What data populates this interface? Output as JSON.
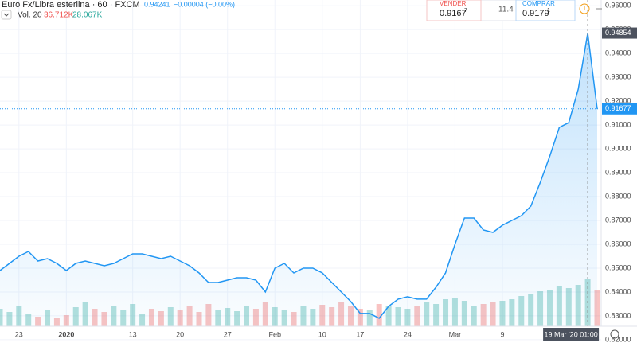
{
  "chart_data": {
    "type": "area",
    "symbol": "Euro Fx/Libra esterlina · 60 · FXCM",
    "last": "0.94241",
    "change": "−0.00004 (−0.00%)",
    "volume_label": "Vol. 20",
    "volume_readings": [
      "36.712K",
      "28.067K"
    ],
    "sell_label": "VENDER",
    "sell_price": "0.9167",
    "sell_sup": "7",
    "spread": "11.4",
    "buy_label": "COMPRAR",
    "buy_price": "0.9179",
    "buy_sup": "1",
    "categories": [
      null,
      null,
      "23",
      null,
      null,
      null,
      null,
      "2020",
      null,
      null,
      null,
      null,
      null,
      null,
      "13",
      null,
      null,
      null,
      null,
      "20",
      null,
      null,
      null,
      null,
      "27",
      null,
      null,
      null,
      null,
      "Feb",
      null,
      null,
      null,
      null,
      "10",
      null,
      null,
      null,
      "17",
      null,
      null,
      null,
      null,
      "24",
      null,
      null,
      null,
      null,
      "Mar",
      null,
      null,
      null,
      null,
      "9",
      null,
      null,
      null,
      null,
      null,
      null,
      null,
      null,
      "19 Mar '20   01:00",
      null
    ],
    "series": [
      {
        "name": "Euro Fx/Libra esterlina",
        "color": "#2196f3",
        "values": [
          0.849,
          0.852,
          0.855,
          0.857,
          0.853,
          0.854,
          0.852,
          0.849,
          0.852,
          0.853,
          0.852,
          0.851,
          0.852,
          0.854,
          0.856,
          0.856,
          0.855,
          0.854,
          0.855,
          0.853,
          0.851,
          0.848,
          0.844,
          0.844,
          0.845,
          0.846,
          0.846,
          0.845,
          0.84,
          0.85,
          0.852,
          0.848,
          0.85,
          0.85,
          0.848,
          0.844,
          0.84,
          0.836,
          0.831,
          0.831,
          0.829,
          0.834,
          0.837,
          0.838,
          0.837,
          0.837,
          0.842,
          0.848,
          0.86,
          0.871,
          0.871,
          0.866,
          0.865,
          0.868,
          0.87,
          0.872,
          0.876,
          0.886,
          0.897,
          0.909,
          0.911,
          0.925,
          0.94854,
          0.91677
        ]
      },
      {
        "name": "Vol. 20",
        "color": "#26a69a",
        "values": [
          22,
          18,
          25,
          15,
          12,
          20,
          10,
          14,
          24,
          30,
          22,
          18,
          26,
          20,
          28,
          16,
          22,
          19,
          24,
          21,
          25,
          18,
          28,
          20,
          23,
          19,
          26,
          22,
          30,
          24,
          20,
          18,
          25,
          22,
          27,
          24,
          30,
          26,
          22,
          20,
          28,
          25,
          24,
          22,
          26,
          30,
          28,
          34,
          36,
          32,
          26,
          28,
          30,
          32,
          34,
          38,
          40,
          44,
          46,
          50,
          48,
          52,
          60,
          45
        ]
      }
    ],
    "crosshair_index": 62,
    "high_line": 0.94854,
    "last_line": 0.91677,
    "ylim": [
      0.8193,
      0.9614
    ],
    "yticks": [
      {
        "value": 0.82,
        "label": "0.82000"
      },
      {
        "value": 0.83,
        "label": "0.83000"
      },
      {
        "value": 0.84,
        "label": "0.84000"
      },
      {
        "value": 0.85,
        "label": "0.85000"
      },
      {
        "value": 0.86,
        "label": "0.86000"
      },
      {
        "value": 0.87,
        "label": "0.87000"
      },
      {
        "value": 0.88,
        "label": "0.88000"
      },
      {
        "value": 0.89,
        "label": "0.89000"
      },
      {
        "value": 0.9,
        "label": "0.90000"
      },
      {
        "value": 0.91,
        "label": "0.91000"
      },
      {
        "value": 0.92,
        "label": "0.92000"
      },
      {
        "value": 0.93,
        "label": "0.93000"
      },
      {
        "value": 0.94,
        "label": "0.94000"
      },
      {
        "value": 0.95,
        "label": "0.95000"
      },
      {
        "value": 0.96,
        "label": "0.96000"
      }
    ],
    "grid": true
  }
}
